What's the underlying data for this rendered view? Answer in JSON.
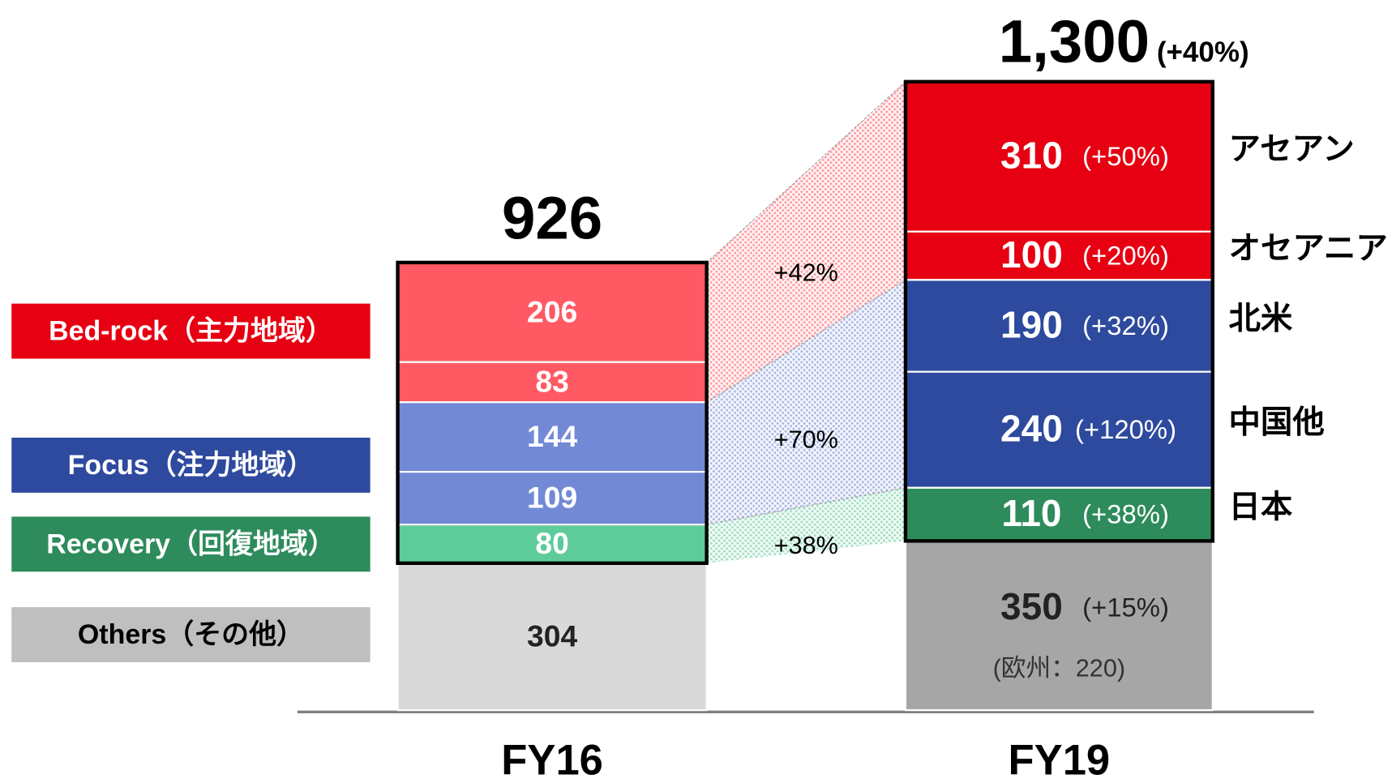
{
  "chart_data": {
    "type": "stacked_bar",
    "categories": [
      "FY16",
      "FY19"
    ],
    "totals": {
      "values": [
        926,
        1300
      ],
      "value_labels": [
        "926",
        "1,300"
      ],
      "changes": [
        null,
        "(+40%)"
      ]
    },
    "groups": [
      {
        "name": "Bed-rock（主力地域）",
        "color": "#e60012",
        "change": "+42%",
        "series": [
          {
            "name": "アセアン",
            "colors": [
              "#ff5a64",
              "#e60012"
            ],
            "values": [
              206,
              310
            ],
            "changes": [
              null,
              "(+50%)"
            ]
          },
          {
            "name": "オセアニア",
            "colors": [
              "#ff5a64",
              "#e60012"
            ],
            "values": [
              83,
              100
            ],
            "changes": [
              null,
              "(+20%)"
            ]
          }
        ]
      },
      {
        "name": "Focus（注力地域）",
        "color": "#2e4a9e",
        "change": "+70%",
        "series": [
          {
            "name": "北米",
            "colors": [
              "#7289d6",
              "#2e4a9e"
            ],
            "values": [
              144,
              190
            ],
            "changes": [
              null,
              "(+32%)"
            ]
          },
          {
            "name": "中国他",
            "colors": [
              "#7289d6",
              "#2e4a9e"
            ],
            "values": [
              109,
              240
            ],
            "changes": [
              null,
              "(+120%)"
            ]
          }
        ]
      },
      {
        "name": "Recovery（回復地域）",
        "color": "#2e8b5c",
        "change": "+38%",
        "series": [
          {
            "name": "日本",
            "colors": [
              "#5ecb9a",
              "#2e8b5c"
            ],
            "values": [
              80,
              110
            ],
            "changes": [
              null,
              "(+38%)"
            ]
          }
        ]
      },
      {
        "name": "Others（その他）",
        "color": "#bfbfbf",
        "series": [
          {
            "colors": [
              "#d9d9d9",
              "#a6a6a6"
            ],
            "values": [
              304,
              350
            ],
            "changes": [
              null,
              "(+15%)"
            ],
            "note": "(欧州：220)"
          }
        ]
      }
    ]
  }
}
